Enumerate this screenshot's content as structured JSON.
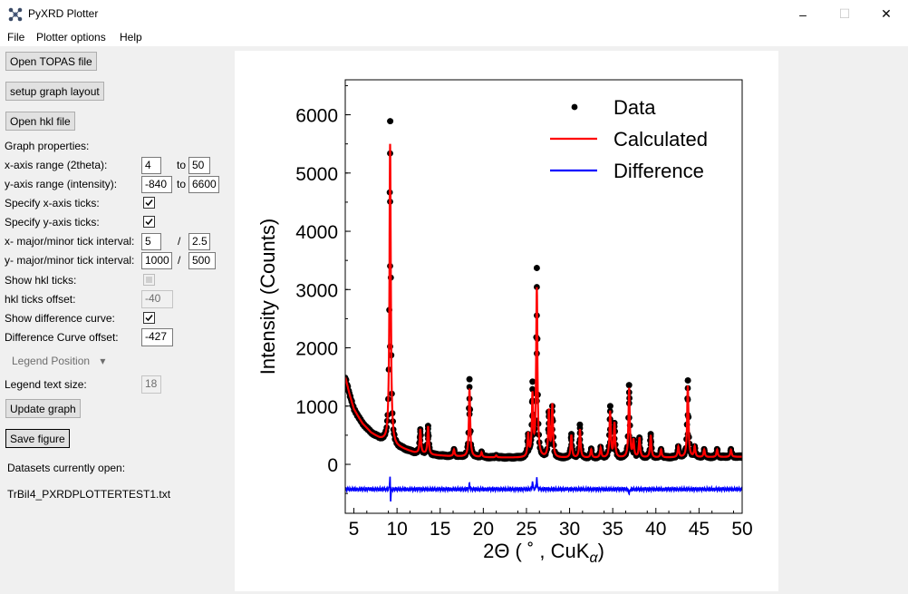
{
  "window": {
    "title": "PyXRD Plotter",
    "minimize": "–",
    "maximize": "☐",
    "close": "✕"
  },
  "menu": [
    "File",
    "Plotter options",
    "Help"
  ],
  "sidebar": {
    "open_topas": "Open TOPAS file",
    "setup_layout": "setup graph layout",
    "open_hkl": "Open hkl file",
    "graph_props": "Graph properties:",
    "x_range_label": "x-axis range (2theta):",
    "x_min": "4",
    "to1": "to",
    "x_max": "50",
    "y_range_label": "y-axis range (intensity):",
    "y_min": "-840",
    "to2": "to",
    "y_max": "6600",
    "spec_x_ticks": "Specify x-axis ticks:",
    "spec_y_ticks": "Specify y-axis ticks:",
    "x_tick_label": "x- major/minor tick interval:",
    "x_major": "5",
    "slash1": "/",
    "x_minor": "2.5",
    "y_tick_label": "y- major/minor tick interval:",
    "y_major": "1000",
    "slash2": "/",
    "y_minor": "500",
    "show_hkl": "Show hkl ticks:",
    "hkl_offset_label": "hkl ticks offset:",
    "hkl_offset": "-40",
    "show_diff": "Show difference curve:",
    "diff_offset_label": "Difference Curve offset:",
    "diff_offset": "-427",
    "legend_position": "Legend Position",
    "legend_arrow": "▾",
    "legend_text_label": "Legend text size:",
    "legend_text_size": "18",
    "update": "Update graph",
    "save": "Save figure",
    "datasets_label": "Datasets currently open:",
    "dataset_file": "TrBiI4_PXRDPLOTTERTEST1.txt"
  },
  "colors": {
    "data": "#000000",
    "calculated": "#ff0000",
    "difference": "#0000ff"
  },
  "chart_data": {
    "type": "line",
    "xlabel_main": "2Θ ( ˚ , CuK",
    "xlabel_sub": "α",
    "xlabel_end": ")",
    "ylabel": "Intensity (Counts)",
    "xlim": [
      4,
      50
    ],
    "ylim": [
      -840,
      6600
    ],
    "x_ticks": [
      5,
      10,
      15,
      20,
      25,
      30,
      35,
      40,
      45,
      50
    ],
    "y_ticks": [
      0,
      1000,
      2000,
      3000,
      4000,
      5000,
      6000
    ],
    "x_minor_interval": 2.5,
    "y_minor_interval": 500,
    "legend": [
      "Data",
      "Calculated",
      "Difference"
    ],
    "legend_position": "upper-right",
    "background": {
      "x": [
        4,
        4.5,
        5,
        5.5,
        6,
        6.5,
        7,
        8,
        9,
        10,
        12,
        14,
        16,
        20,
        25,
        30,
        35,
        40,
        45,
        50
      ],
      "y": [
        1500,
        1200,
        950,
        820,
        700,
        620,
        540,
        440,
        380,
        300,
        200,
        160,
        140,
        120,
        110,
        110,
        110,
        115,
        120,
        130
      ]
    },
    "peaks": [
      {
        "x": 9.2,
        "calc": 5500,
        "data": 5890
      },
      {
        "x": 12.7,
        "calc": 600,
        "data": 600
      },
      {
        "x": 13.6,
        "calc": 650,
        "data": 660
      },
      {
        "x": 16.6,
        "calc": 250,
        "data": 260
      },
      {
        "x": 18.4,
        "calc": 1300,
        "data": 1460
      },
      {
        "x": 19.8,
        "calc": 200,
        "data": 220
      },
      {
        "x": 21.5,
        "calc": 150,
        "data": 160
      },
      {
        "x": 25.2,
        "calc": 500,
        "data": 520
      },
      {
        "x": 25.7,
        "calc": 1150,
        "data": 1420
      },
      {
        "x": 26.2,
        "calc": 3000,
        "data": 3370
      },
      {
        "x": 27.6,
        "calc": 900,
        "data": 900
      },
      {
        "x": 28.0,
        "calc": 1000,
        "data": 1000
      },
      {
        "x": 30.2,
        "calc": 500,
        "data": 520
      },
      {
        "x": 31.2,
        "calc": 600,
        "data": 680
      },
      {
        "x": 32.5,
        "calc": 250,
        "data": 270
      },
      {
        "x": 33.6,
        "calc": 280,
        "data": 300
      },
      {
        "x": 34.7,
        "calc": 900,
        "data": 1000
      },
      {
        "x": 35.2,
        "calc": 700,
        "data": 710
      },
      {
        "x": 36.9,
        "calc": 1300,
        "data": 1360
      },
      {
        "x": 37.4,
        "calc": 400,
        "data": 420
      },
      {
        "x": 38.1,
        "calc": 450,
        "data": 460
      },
      {
        "x": 39.4,
        "calc": 500,
        "data": 520
      },
      {
        "x": 40.6,
        "calc": 250,
        "data": 260
      },
      {
        "x": 42.6,
        "calc": 300,
        "data": 310
      },
      {
        "x": 43.7,
        "calc": 1350,
        "data": 1440
      },
      {
        "x": 44.5,
        "calc": 300,
        "data": 310
      },
      {
        "x": 45.6,
        "calc": 250,
        "data": 260
      },
      {
        "x": 47.1,
        "calc": 250,
        "data": 260
      },
      {
        "x": 48.7,
        "calc": 250,
        "data": 260
      }
    ],
    "difference": {
      "offset": -427,
      "spikes": [
        {
          "x": 9.2,
          "dy": 380
        },
        {
          "x": 9.25,
          "dy": -350
        },
        {
          "x": 25.7,
          "dy": 150
        },
        {
          "x": 26.2,
          "dy": 230
        },
        {
          "x": 18.4,
          "dy": 100
        },
        {
          "x": 36.9,
          "dy": -100
        }
      ]
    }
  }
}
